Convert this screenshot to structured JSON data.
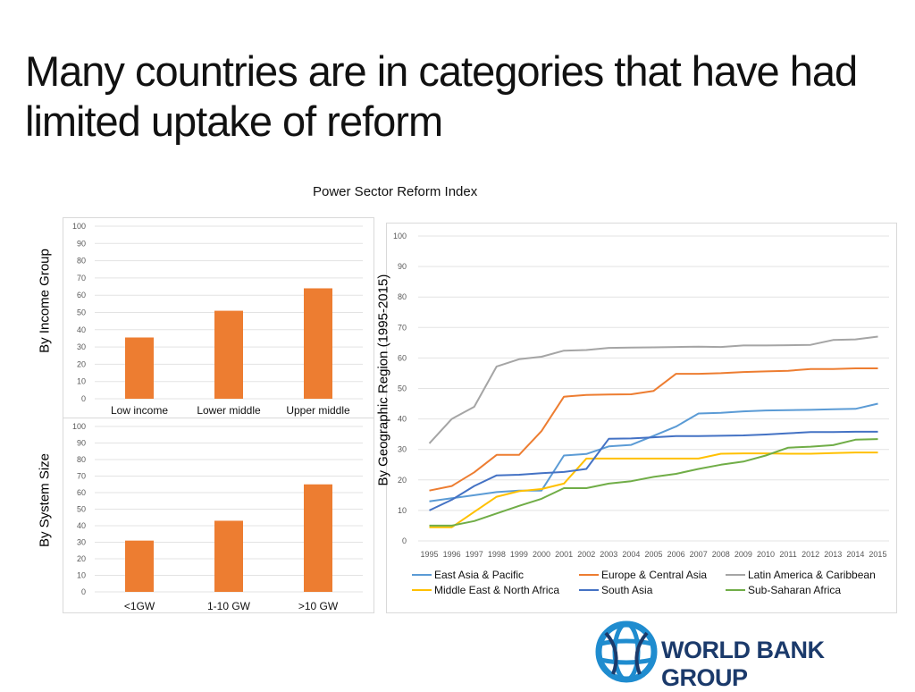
{
  "slide": {
    "title": "Many countries are in categories that have had limited uptake of reform",
    "supertitle": "Power Sector Reform Index",
    "label_income": "By Income Group",
    "label_size": "By System Size",
    "label_region": "By  Geographic Region (1995-2015)",
    "logo_text": "WORLD BANK GROUP"
  },
  "colors": {
    "bar": "#ED7D31",
    "grid": "#e3e3e3",
    "axis_text": "#595959"
  },
  "chart_data": [
    {
      "id": "income",
      "type": "bar",
      "categories": [
        "Low income",
        "Lower middle",
        "Upper middle"
      ],
      "values": [
        35.5,
        51,
        64
      ],
      "ylim": [
        0,
        100
      ],
      "yticks": [
        0,
        10,
        20,
        30,
        40,
        50,
        60,
        70,
        80,
        90,
        100
      ],
      "grid": true
    },
    {
      "id": "size",
      "type": "bar",
      "categories": [
        "<1GW",
        "1-10 GW",
        ">10 GW"
      ],
      "values": [
        31,
        43,
        65
      ],
      "ylim": [
        0,
        100
      ],
      "yticks": [
        0,
        10,
        20,
        30,
        40,
        50,
        60,
        70,
        80,
        90,
        100
      ],
      "grid": true
    },
    {
      "id": "region",
      "type": "line",
      "x": [
        1995,
        1996,
        1997,
        1998,
        1999,
        2000,
        2001,
        2002,
        2003,
        2004,
        2005,
        2006,
        2007,
        2008,
        2009,
        2010,
        2011,
        2012,
        2013,
        2014,
        2015
      ],
      "ylim": [
        0,
        100
      ],
      "yticks": [
        0,
        10,
        20,
        30,
        40,
        50,
        60,
        70,
        80,
        90,
        100
      ],
      "grid": true,
      "legend": "bottom",
      "series": [
        {
          "name": "East Asia & Pacific",
          "color": "#5B9BD5",
          "values": [
            13,
            14,
            15,
            16,
            16.5,
            16.5,
            28,
            28.5,
            31,
            31.5,
            34.5,
            37.5,
            41.8,
            42,
            42.5,
            42.8,
            42.9,
            43,
            43.2,
            43.3,
            45
          ]
        },
        {
          "name": "Europe & Central Asia",
          "color": "#ED7D31",
          "values": [
            16.5,
            18,
            22.5,
            28.2,
            28.2,
            36,
            47.3,
            47.9,
            48,
            48.1,
            49.2,
            54.8,
            54.8,
            55,
            55.4,
            55.6,
            55.8,
            56.4,
            56.4,
            56.6,
            56.6
          ]
        },
        {
          "name": "Latin America & Caribbean",
          "color": "#A5A5A5",
          "values": [
            32,
            40,
            44,
            57.2,
            59.6,
            60.4,
            62.4,
            62.6,
            63.3,
            63.4,
            63.5,
            63.6,
            63.7,
            63.6,
            64.1,
            64.1,
            64.2,
            64.3,
            65.9,
            66.1,
            67
          ]
        },
        {
          "name": "Middle East & North Africa",
          "color": "#FFC000",
          "values": [
            4.5,
            4.5,
            9.5,
            14.5,
            16.3,
            17,
            18.8,
            27,
            27,
            27,
            27,
            27,
            27,
            28.6,
            28.7,
            28.7,
            28.6,
            28.6,
            28.8,
            29,
            29
          ]
        },
        {
          "name": "South Asia",
          "color": "#4472C4",
          "values": [
            10,
            13.5,
            18,
            21.5,
            21.7,
            22.2,
            22.6,
            23.6,
            33.5,
            33.6,
            34,
            34.4,
            34.4,
            34.5,
            34.6,
            34.9,
            35.3,
            35.7,
            35.7,
            35.8,
            35.8
          ]
        },
        {
          "name": "Sub-Saharan Africa",
          "color": "#70AD47",
          "values": [
            5,
            5,
            6.5,
            9,
            11.5,
            13.8,
            17.3,
            17.3,
            18.8,
            19.6,
            21,
            22,
            23.6,
            25,
            26,
            28,
            30.6,
            30.9,
            31.4,
            33.2,
            33.4
          ]
        }
      ]
    }
  ]
}
